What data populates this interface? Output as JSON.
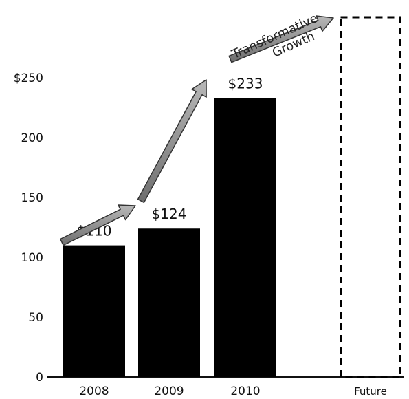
{
  "chart_data": {
    "type": "bar",
    "categories": [
      "2008",
      "2009",
      "2010",
      "Future"
    ],
    "values": [
      110,
      124,
      233,
      null
    ],
    "value_labels": [
      "$110",
      "$124",
      "$233",
      ""
    ],
    "yticks": [
      "0",
      "50",
      "100",
      "150",
      "200",
      "$250"
    ],
    "ylim": [
      0,
      250
    ],
    "title": "",
    "xlabel": "",
    "ylabel": "",
    "grid": false,
    "annotation": {
      "line1": "Transformative",
      "line2": "Growth"
    },
    "colors": {
      "bar": "#000000",
      "future_outline": "#000000",
      "arrow_fill": "#9a9a9a",
      "arrow_stroke": "#333333"
    }
  }
}
